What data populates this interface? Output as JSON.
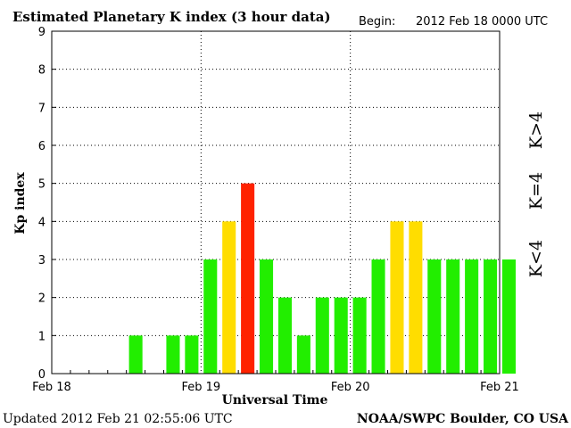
{
  "header": {
    "title": "Estimated Planetary K index (3 hour data)",
    "begin_label": "Begin:",
    "begin_value": "2012 Feb 18 0000 UTC"
  },
  "footer": {
    "updated": "Updated 2012 Feb 21 02:55:06 UTC",
    "source": "NOAA/SWPC Boulder, CO USA"
  },
  "legend": {
    "low": "K<4",
    "mid": "K=4",
    "high": "K>4"
  },
  "colors": {
    "low": "#22ee00",
    "mid": "#ffdd00",
    "high": "#ff2200"
  },
  "chart_data": {
    "type": "bar",
    "ylabel": "Kp index",
    "xlabel": "Universal Time",
    "ylim": [
      0,
      9
    ],
    "y_ticks": [
      "0",
      "1",
      "2",
      "3",
      "4",
      "5",
      "6",
      "7",
      "8",
      "9"
    ],
    "x_ticks": [
      "Feb 18",
      "Feb 19",
      "Feb 20",
      "Feb 21"
    ],
    "grid": true,
    "interval_hours": 3,
    "values": [
      0,
      0,
      0,
      0,
      1,
      0,
      1,
      1,
      3,
      4,
      5,
      3,
      2,
      1,
      2,
      2,
      2,
      3,
      4,
      4,
      3,
      3,
      3,
      3,
      3
    ]
  }
}
